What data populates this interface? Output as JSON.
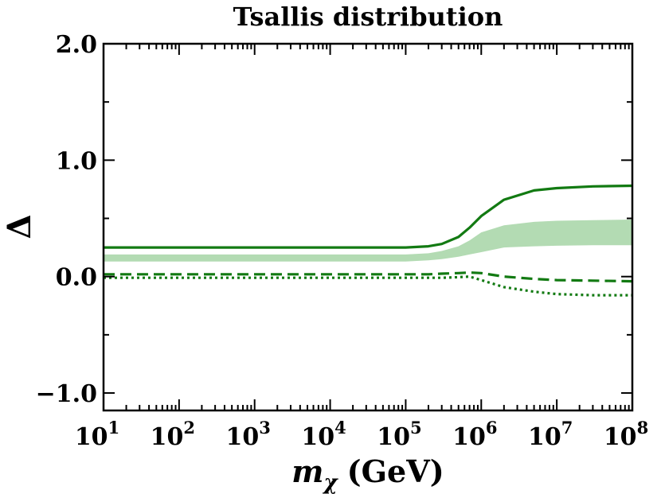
{
  "chart_data": {
    "type": "line",
    "title": "Tsallis distribution",
    "xlabel": "m",
    "xlabel_sub": "χ",
    "xlabel_unit": "(GeV)",
    "ylabel": "Δ",
    "xscale": "log",
    "xlim": [
      10,
      100000000
    ],
    "ylim": [
      -1.15,
      2.0
    ],
    "x_ticks": [
      {
        "base": "10",
        "exp": "1"
      },
      {
        "base": "10",
        "exp": "2"
      },
      {
        "base": "10",
        "exp": "3"
      },
      {
        "base": "10",
        "exp": "4"
      },
      {
        "base": "10",
        "exp": "5"
      },
      {
        "base": "10",
        "exp": "6"
      },
      {
        "base": "10",
        "exp": "7"
      },
      {
        "base": "10",
        "exp": "8"
      }
    ],
    "y_ticks": [
      {
        "value": -1.0,
        "label": "−1.0"
      },
      {
        "value": 0.0,
        "label": "0.0"
      },
      {
        "value": 1.0,
        "label": "1.0"
      },
      {
        "value": 2.0,
        "label": "2.0"
      }
    ],
    "colors": {
      "line": "#127a12",
      "band": "#b3dbb3"
    },
    "x": [
      10,
      100000,
      200000,
      300000,
      500000,
      700000,
      1000000,
      2000000,
      5000000,
      10000000,
      30000000,
      100000000
    ],
    "band": {
      "lower": [
        0.13,
        0.13,
        0.14,
        0.15,
        0.17,
        0.19,
        0.21,
        0.25,
        0.26,
        0.265,
        0.27,
        0.27
      ],
      "upper": [
        0.19,
        0.19,
        0.2,
        0.22,
        0.26,
        0.31,
        0.38,
        0.44,
        0.47,
        0.48,
        0.485,
        0.49
      ]
    },
    "series": [
      {
        "style": "solid",
        "values": [
          0.25,
          0.25,
          0.26,
          0.28,
          0.34,
          0.42,
          0.52,
          0.66,
          0.74,
          0.76,
          0.775,
          0.78
        ]
      },
      {
        "style": "dashed",
        "values": [
          0.02,
          0.02,
          0.02,
          0.025,
          0.03,
          0.035,
          0.03,
          0.0,
          -0.02,
          -0.03,
          -0.035,
          -0.04
        ]
      },
      {
        "style": "dotted",
        "values": [
          -0.01,
          -0.01,
          -0.01,
          -0.01,
          -0.005,
          0.0,
          -0.03,
          -0.09,
          -0.13,
          -0.15,
          -0.16,
          -0.16
        ]
      }
    ]
  }
}
